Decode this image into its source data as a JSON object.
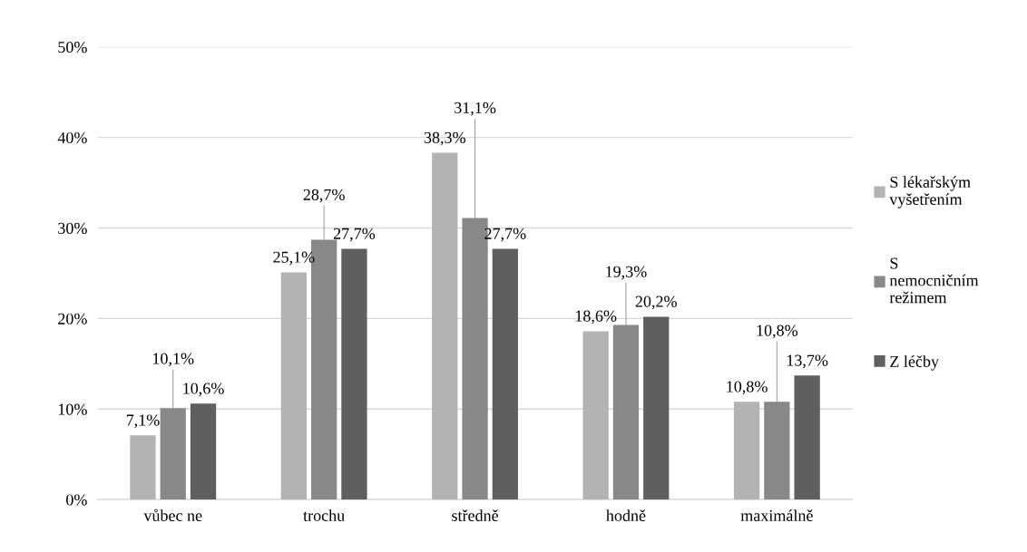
{
  "chart_data": {
    "type": "bar",
    "categories": [
      "vůbec ne",
      "trochu",
      "středně",
      "hodně",
      "maximálně"
    ],
    "series": [
      {
        "name": "S lékařským vyšetřením",
        "color": "#b3b3b3",
        "values": [
          7.1,
          25.1,
          38.3,
          18.6,
          10.8
        ],
        "value_labels": [
          "7,1%",
          "25,1%",
          "38,3%",
          "18,6%",
          "10,8%"
        ]
      },
      {
        "name": "S nemocničním režimem",
        "color": "#888888",
        "values": [
          10.1,
          28.7,
          31.1,
          19.3,
          10.8
        ],
        "value_labels": [
          "10,1%",
          "28,7%",
          "31,1%",
          "19,3%",
          "10,8%"
        ]
      },
      {
        "name": "Z léčby",
        "color": "#5f5f5f",
        "values": [
          10.6,
          27.7,
          27.7,
          20.2,
          13.7
        ],
        "value_labels": [
          "10,6%",
          "27,7%",
          "27,7%",
          "20,2%",
          "13,7%"
        ]
      }
    ],
    "ylim": [
      0,
      50
    ],
    "yticks": [
      {
        "value": 0,
        "label": "0%"
      },
      {
        "value": 10,
        "label": "10%"
      },
      {
        "value": 20,
        "label": "20%"
      },
      {
        "value": 30,
        "label": "30%"
      },
      {
        "value": 40,
        "label": "40%"
      },
      {
        "value": 50,
        "label": "50%"
      }
    ],
    "grid": "y",
    "legend": "right"
  }
}
